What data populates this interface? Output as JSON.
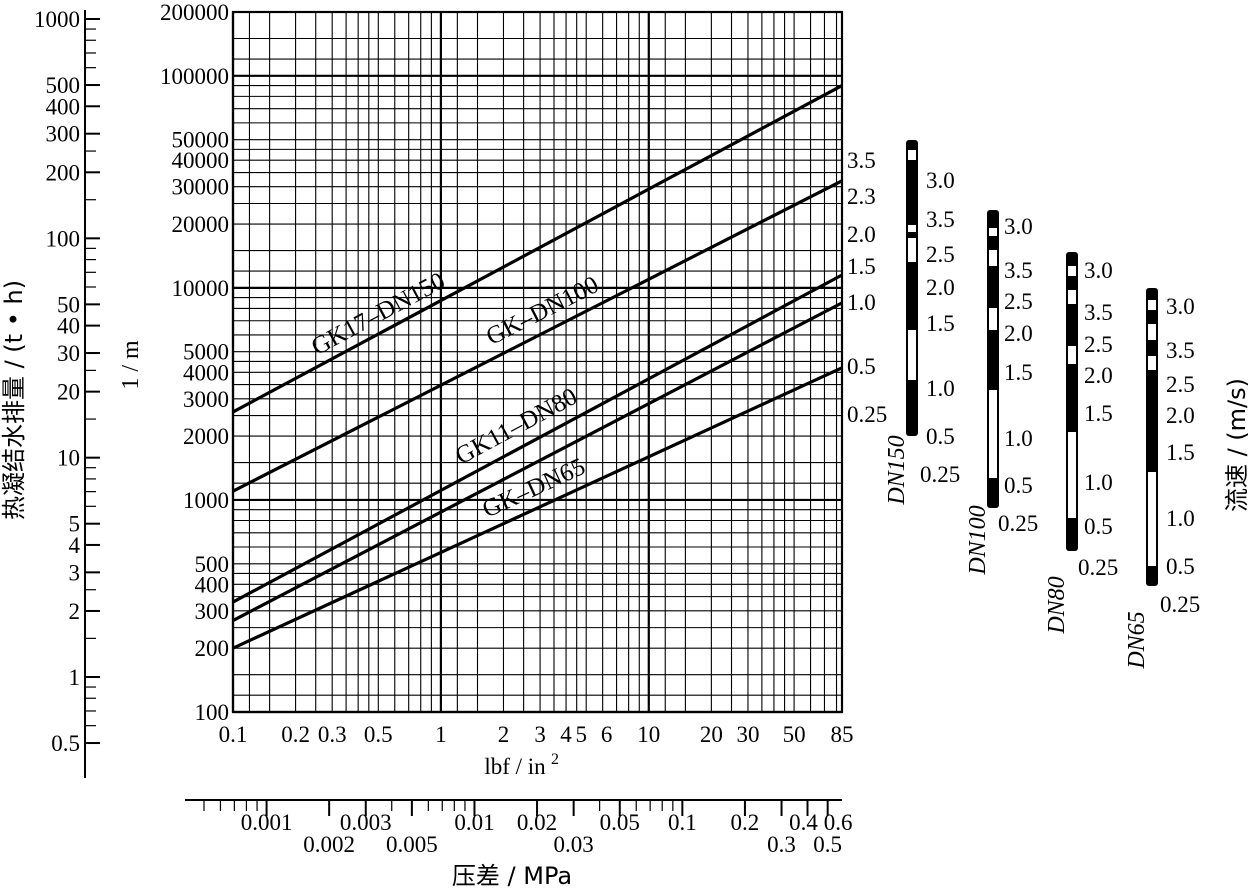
{
  "chart_data": {
    "type": "line",
    "xlabel": "lbf / in",
    "xlabel_sup": "2",
    "xlabel2": "压差 / MPa",
    "ylabel_main": "1 / m",
    "ylabel_left": "热凝结水排量 / (t • h)",
    "ylabel_right": "流速 / (m/s)",
    "x_scale": "log",
    "y_scale": "log",
    "xlim": [
      0.1,
      85
    ],
    "ylim": [
      100,
      200000
    ],
    "grid": true,
    "x_ticks": [
      "0.1",
      "0.2",
      "0.3",
      "0.5",
      "1",
      "2",
      "3",
      "4",
      "5",
      "6",
      "10",
      "20",
      "30",
      "50",
      "85"
    ],
    "y_ticks": [
      "100",
      "200",
      "300",
      "400",
      "500",
      "1000",
      "2000",
      "3000",
      "4000",
      "5000",
      "10000",
      "20000",
      "30000",
      "40000",
      "50000",
      "100000",
      "200000"
    ],
    "left_axis_ticks": [
      "0.5",
      "1",
      "2",
      "3",
      "4",
      "5",
      "10",
      "20",
      "30",
      "40",
      "50",
      "100",
      "200",
      "300",
      "400",
      "500",
      "1000"
    ],
    "mpa_ticks_top": [
      "0.001",
      "0.003",
      "0.01",
      "0.02",
      "0.05",
      "0.1",
      "0.2",
      "0.4",
      "0.6"
    ],
    "mpa_ticks_bottom": [
      "0.002",
      "0.005",
      "0.03",
      "0.3",
      "0.5"
    ],
    "series": [
      {
        "name": "GK17–DN150",
        "x": [
          0.1,
          85
        ],
        "y": [
          2600,
          90000
        ]
      },
      {
        "name": "GK–DN100",
        "x": [
          0.1,
          85
        ],
        "y": [
          1100,
          32000
        ]
      },
      {
        "name": "GK11–DN80",
        "x": [
          0.1,
          85
        ],
        "y": [
          330,
          11500
        ]
      },
      {
        "name": "GK–DN65",
        "x": [
          0.1,
          85
        ],
        "y": [
          200,
          4200
        ]
      }
    ],
    "extra_series": [
      {
        "x": [
          0.1,
          85
        ],
        "y": [
          270,
          8500
        ]
      }
    ],
    "right_labels": [
      "3.5",
      "2.3",
      "2.0",
      "1.5",
      "1.0",
      "0.5",
      "0.25"
    ],
    "velocity_bars": [
      {
        "name": "DN150",
        "labels": [
          "3.0",
          "3.5",
          "2.5",
          "2.0",
          "1.5",
          "1.0",
          "0.5",
          "0.25"
        ]
      },
      {
        "name": "DN100",
        "labels": [
          "3.0",
          "3.5",
          "2.5",
          "2.0",
          "1.5",
          "1.0",
          "0.5",
          "0.25"
        ]
      },
      {
        "name": "DN80",
        "labels": [
          "3.0",
          "3.5",
          "2.5",
          "2.0",
          "1.5",
          "1.0",
          "0.5",
          "0.25"
        ]
      },
      {
        "name": "DN65",
        "labels": [
          "3.0",
          "3.5",
          "2.5",
          "2.0",
          "1.5",
          "1.0",
          "0.5",
          "0.25"
        ]
      }
    ]
  }
}
